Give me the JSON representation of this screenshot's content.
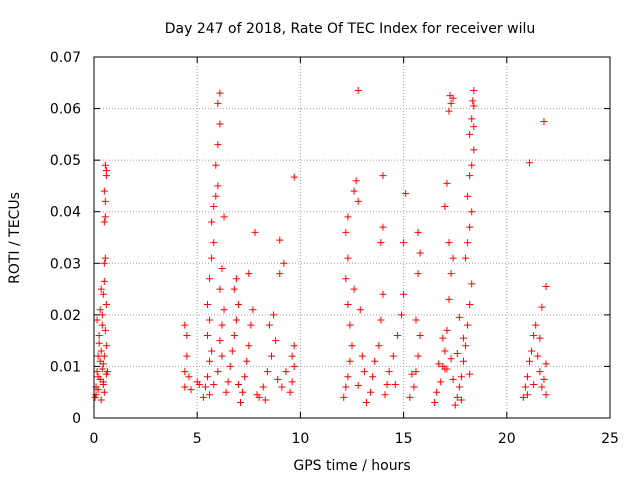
{
  "chart_data": {
    "type": "scatter",
    "title": "Day 247 of 2018, Rate Of TEC Index for receiver wilu",
    "xlabel": "GPS time / hours",
    "ylabel": "ROTI / TECUs",
    "xlim": [
      0,
      25
    ],
    "ylim": [
      0,
      0.07
    ],
    "xticks": [
      "0",
      "5",
      "10",
      "15",
      "20",
      "25"
    ],
    "yticks": [
      "0",
      "0.01",
      "0.02",
      "0.03",
      "0.04",
      "0.05",
      "0.06",
      "0.07"
    ],
    "grid": true,
    "marker": "+",
    "color": "#ff0000",
    "series": [
      {
        "points": [
          [
            0.05,
            0.004
          ],
          [
            0.1,
            0.006
          ],
          [
            0.15,
            0.009
          ],
          [
            0.2,
            0.012
          ],
          [
            0.25,
            0.016
          ],
          [
            0.3,
            0.021
          ],
          [
            0.35,
            0.025
          ],
          [
            0.4,
            0.018
          ],
          [
            0.45,
            0.007
          ],
          [
            0.5,
            0.005
          ],
          [
            0.1,
            0.0045
          ],
          [
            0.2,
            0.008
          ],
          [
            0.3,
            0.011
          ],
          [
            0.35,
            0.013
          ],
          [
            0.4,
            0.02
          ],
          [
            0.45,
            0.024
          ],
          [
            0.5,
            0.03
          ],
          [
            0.55,
            0.031
          ],
          [
            0.6,
            0.014
          ],
          [
            0.65,
            0.009
          ],
          [
            0.2,
            0.0055
          ],
          [
            0.3,
            0.0075
          ],
          [
            0.4,
            0.0095
          ],
          [
            0.45,
            0.0105
          ],
          [
            0.5,
            0.012
          ],
          [
            0.55,
            0.017
          ],
          [
            0.6,
            0.022
          ],
          [
            0.5,
            0.038
          ],
          [
            0.55,
            0.039
          ],
          [
            0.5,
            0.044
          ],
          [
            0.55,
            0.049
          ],
          [
            0.6,
            0.048
          ],
          [
            0.6,
            0.047
          ],
          [
            0.55,
            0.042
          ],
          [
            0.35,
            0.0035
          ],
          [
            0.45,
            0.0065
          ],
          [
            0.6,
            0.0085
          ],
          [
            0.25,
            0.0145
          ],
          [
            0.15,
            0.019
          ],
          [
            0.5,
            0.0265
          ],
          [
            4.4,
            0.006
          ],
          [
            4.4,
            0.009
          ],
          [
            4.5,
            0.012
          ],
          [
            4.5,
            0.016
          ],
          [
            4.4,
            0.018
          ],
          [
            4.6,
            0.008
          ],
          [
            4.7,
            0.0055
          ],
          [
            5.0,
            0.007
          ],
          [
            5.1,
            0.0065
          ],
          [
            5.3,
            0.004
          ],
          [
            5.4,
            0.006
          ],
          [
            5.5,
            0.008
          ],
          [
            5.6,
            0.011
          ],
          [
            5.7,
            0.013
          ],
          [
            5.5,
            0.016
          ],
          [
            5.6,
            0.019
          ],
          [
            5.5,
            0.022
          ],
          [
            5.6,
            0.027
          ],
          [
            5.7,
            0.031
          ],
          [
            5.8,
            0.034
          ],
          [
            5.7,
            0.038
          ],
          [
            5.8,
            0.041
          ],
          [
            5.9,
            0.043
          ],
          [
            6.0,
            0.045
          ],
          [
            5.9,
            0.049
          ],
          [
            6.0,
            0.053
          ],
          [
            6.1,
            0.057
          ],
          [
            6.0,
            0.061
          ],
          [
            6.1,
            0.063
          ],
          [
            5.6,
            0.0045
          ],
          [
            5.8,
            0.0065
          ],
          [
            6.0,
            0.009
          ],
          [
            6.2,
            0.012
          ],
          [
            6.1,
            0.015
          ],
          [
            6.2,
            0.018
          ],
          [
            6.3,
            0.021
          ],
          [
            6.1,
            0.025
          ],
          [
            6.2,
            0.029
          ],
          [
            6.3,
            0.039
          ],
          [
            6.4,
            0.005
          ],
          [
            6.5,
            0.007
          ],
          [
            6.6,
            0.01
          ],
          [
            6.7,
            0.013
          ],
          [
            6.8,
            0.016
          ],
          [
            6.9,
            0.019
          ],
          [
            7.0,
            0.022
          ],
          [
            6.8,
            0.025
          ],
          [
            6.9,
            0.027
          ],
          [
            7.0,
            0.0065
          ],
          [
            7.1,
            0.003
          ],
          [
            7.2,
            0.005
          ],
          [
            7.3,
            0.008
          ],
          [
            7.4,
            0.011
          ],
          [
            7.5,
            0.014
          ],
          [
            7.6,
            0.018
          ],
          [
            7.7,
            0.021
          ],
          [
            7.8,
            0.036
          ],
          [
            7.5,
            0.028
          ],
          [
            7.9,
            0.0045
          ],
          [
            8.0,
            0.004
          ],
          [
            8.2,
            0.006
          ],
          [
            8.4,
            0.009
          ],
          [
            8.6,
            0.012
          ],
          [
            8.8,
            0.015
          ],
          [
            8.5,
            0.018
          ],
          [
            8.7,
            0.02
          ],
          [
            9.0,
            0.028
          ],
          [
            9.2,
            0.03
          ],
          [
            8.3,
            0.0035
          ],
          [
            9.1,
            0.006
          ],
          [
            9.3,
            0.009
          ],
          [
            9.5,
            0.005
          ],
          [
            9.6,
            0.007
          ],
          [
            9.7,
            0.01
          ],
          [
            9.6,
            0.012
          ],
          [
            9.7,
            0.014
          ],
          [
            9.7,
            0.0467
          ],
          [
            9.0,
            0.0345
          ],
          [
            8.9,
            0.0075
          ],
          [
            12.1,
            0.004
          ],
          [
            12.2,
            0.006
          ],
          [
            12.3,
            0.008
          ],
          [
            12.4,
            0.011
          ],
          [
            12.5,
            0.014
          ],
          [
            12.4,
            0.018
          ],
          [
            12.3,
            0.022
          ],
          [
            12.2,
            0.027
          ],
          [
            12.3,
            0.031
          ],
          [
            12.2,
            0.036
          ],
          [
            12.3,
            0.039
          ],
          [
            12.6,
            0.044
          ],
          [
            12.7,
            0.046
          ],
          [
            12.8,
            0.042
          ],
          [
            12.9,
            0.021
          ],
          [
            13.0,
            0.012
          ],
          [
            13.1,
            0.009
          ],
          [
            12.8,
            0.0063
          ],
          [
            12.6,
            0.025
          ],
          [
            12.8,
            0.0635
          ],
          [
            13.2,
            0.003
          ],
          [
            13.4,
            0.005
          ],
          [
            13.5,
            0.008
          ],
          [
            13.6,
            0.011
          ],
          [
            13.8,
            0.014
          ],
          [
            13.9,
            0.019
          ],
          [
            14.0,
            0.024
          ],
          [
            13.9,
            0.034
          ],
          [
            14.0,
            0.037
          ],
          [
            14.0,
            0.047
          ],
          [
            14.1,
            0.0045
          ],
          [
            14.2,
            0.0065
          ],
          [
            14.3,
            0.009
          ],
          [
            14.5,
            0.012
          ],
          [
            14.7,
            0.016
          ],
          [
            14.9,
            0.02
          ],
          [
            15.0,
            0.024
          ],
          [
            15.0,
            0.034
          ],
          [
            15.1,
            0.0435
          ],
          [
            14.6,
            0.0065
          ],
          [
            15.3,
            0.004
          ],
          [
            15.5,
            0.006
          ],
          [
            15.6,
            0.009
          ],
          [
            15.7,
            0.012
          ],
          [
            15.8,
            0.016
          ],
          [
            15.6,
            0.019
          ],
          [
            15.7,
            0.028
          ],
          [
            15.8,
            0.032
          ],
          [
            15.7,
            0.036
          ],
          [
            15.4,
            0.0085
          ],
          [
            16.5,
            0.003
          ],
          [
            16.6,
            0.005
          ],
          [
            16.8,
            0.007
          ],
          [
            16.9,
            0.01
          ],
          [
            17.0,
            0.013
          ],
          [
            17.1,
            0.017
          ],
          [
            17.2,
            0.023
          ],
          [
            17.3,
            0.028
          ],
          [
            17.4,
            0.031
          ],
          [
            17.2,
            0.034
          ],
          [
            17.0,
            0.041
          ],
          [
            17.1,
            0.0455
          ],
          [
            17.2,
            0.0595
          ],
          [
            17.3,
            0.061
          ],
          [
            17.25,
            0.0625
          ],
          [
            17.4,
            0.062
          ],
          [
            17.5,
            0.0025
          ],
          [
            17.6,
            0.004
          ],
          [
            17.7,
            0.006
          ],
          [
            17.8,
            0.008
          ],
          [
            17.9,
            0.011
          ],
          [
            18.0,
            0.014
          ],
          [
            18.1,
            0.018
          ],
          [
            18.2,
            0.022
          ],
          [
            18.3,
            0.026
          ],
          [
            18.0,
            0.031
          ],
          [
            18.1,
            0.034
          ],
          [
            18.2,
            0.037
          ],
          [
            18.3,
            0.04
          ],
          [
            18.1,
            0.043
          ],
          [
            18.2,
            0.047
          ],
          [
            18.3,
            0.049
          ],
          [
            18.4,
            0.052
          ],
          [
            18.2,
            0.055
          ],
          [
            18.3,
            0.058
          ],
          [
            18.4,
            0.0565
          ],
          [
            18.35,
            0.0615
          ],
          [
            18.4,
            0.0635
          ],
          [
            18.4,
            0.0605
          ],
          [
            17.8,
            0.0035
          ],
          [
            17.0,
            0.0095
          ],
          [
            17.3,
            0.0115
          ],
          [
            17.6,
            0.0125
          ],
          [
            17.9,
            0.0155
          ],
          [
            18.2,
            0.0085
          ],
          [
            16.7,
            0.0105
          ],
          [
            16.9,
            0.0155
          ],
          [
            17.1,
            0.0095
          ],
          [
            17.4,
            0.0075
          ],
          [
            17.7,
            0.0195
          ],
          [
            20.8,
            0.004
          ],
          [
            20.9,
            0.006
          ],
          [
            21.0,
            0.008
          ],
          [
            21.1,
            0.011
          ],
          [
            21.2,
            0.013
          ],
          [
            21.3,
            0.016
          ],
          [
            21.4,
            0.018
          ],
          [
            21.5,
            0.012
          ],
          [
            21.6,
            0.009
          ],
          [
            21.7,
            0.006
          ],
          [
            21.8,
            0.0075
          ],
          [
            21.9,
            0.0105
          ],
          [
            21.7,
            0.0215
          ],
          [
            21.9,
            0.0255
          ],
          [
            21.8,
            0.0575
          ],
          [
            21.1,
            0.0495
          ],
          [
            21.0,
            0.0045
          ],
          [
            21.3,
            0.0065
          ],
          [
            21.6,
            0.0155
          ],
          [
            21.9,
            0.0045
          ]
        ]
      }
    ]
  }
}
